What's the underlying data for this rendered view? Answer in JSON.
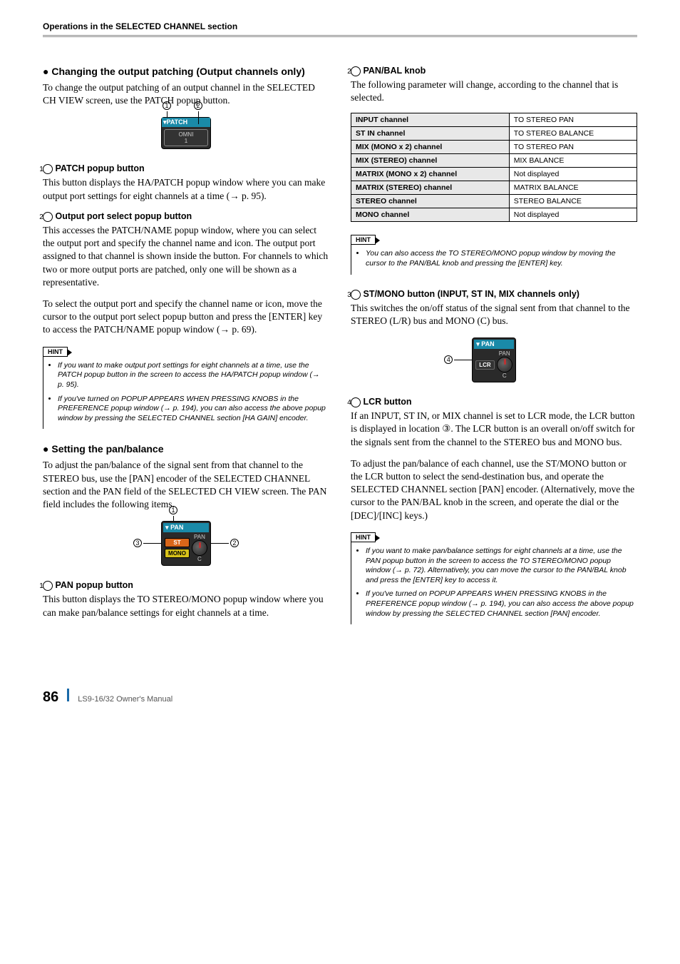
{
  "header": "Operations in the SELECTED CHANNEL section",
  "footer": {
    "page": "86",
    "manual": "LS9-16/32  Owner's Manual"
  },
  "left": {
    "h1": "Changing the output patching (Output channels only)",
    "p1": "To change the output patching of an output channel in the SELECTED CH VIEW screen, use the PATCH popup button.",
    "fig1": {
      "c1": "1",
      "c2": "2",
      "top": "▾PATCH",
      "mid": "OMNI\n1"
    },
    "s1": {
      "num": "1",
      "title": "PATCH popup button",
      "body": "This button displays the HA/PATCH popup window where you can make output port settings for eight channels at a time (→ p. 95)."
    },
    "s2": {
      "num": "2",
      "title": "Output port select popup button",
      "body": "This accesses the PATCH/NAME popup window, where you can select the output port and specify the channel name and icon. The output port assigned to that channel is shown inside the button. For channels to which two or more output ports are patched, only one will be shown as a representative."
    },
    "p2": "To select the output port and specify the channel name or icon, move the cursor to the output port select popup button and press the [ENTER] key to access the PATCH/NAME popup window (→ p. 69).",
    "hint1": [
      "If you want to make output port settings for eight channels at a time, use the PATCH popup button in the screen to access the HA/PATCH popup window (→ p. 95).",
      "If you've turned on POPUP APPEARS WHEN PRESSING KNOBS in the PREFERENCE popup window (→ p. 194), you can also access the above popup window by pressing the SELECTED CHANNEL section [HA GAIN] encoder."
    ],
    "h2": "Setting the pan/balance",
    "p3": "To adjust the pan/balance of the signal sent from that channel to the STEREO bus, use the [PAN] encoder of the SELECTED CHANNEL section and the PAN field of the SELECTED CH VIEW screen. The PAN field includes the following items.",
    "fig2": {
      "c1": "1",
      "c2": "2",
      "c3": "3",
      "top": "▾ PAN",
      "pan": "PAN",
      "st": "ST",
      "mono": "MONO",
      "c": "C"
    },
    "s3": {
      "num": "1",
      "title": "PAN popup button",
      "body": "This button displays the TO STEREO/MONO popup window where you can make pan/balance settings for eight channels at a time."
    }
  },
  "right": {
    "s4": {
      "num": "2",
      "title": "PAN/BAL knob",
      "body": "The following parameter will change, according to the channel that is selected."
    },
    "table": [
      [
        "INPUT channel",
        "TO STEREO PAN"
      ],
      [
        "ST IN channel",
        "TO STEREO BALANCE"
      ],
      [
        "MIX (MONO x 2) channel",
        "TO STEREO PAN"
      ],
      [
        "MIX (STEREO) channel",
        "MIX BALANCE"
      ],
      [
        "MATRIX (MONO x 2) channel",
        "Not displayed"
      ],
      [
        "MATRIX (STEREO) channel",
        "MATRIX BALANCE"
      ],
      [
        "STEREO channel",
        "STEREO BALANCE"
      ],
      [
        "MONO channel",
        "Not displayed"
      ]
    ],
    "hint2": [
      "You can also access the TO STEREO/MONO popup window by moving the cursor to the PAN/BAL knob and pressing the [ENTER] key."
    ],
    "s5": {
      "num": "3",
      "title": "ST/MONO button (INPUT, ST IN, MIX channels only)",
      "body": "This switches the on/off status of the signal sent from that channel to the STEREO (L/R) bus and MONO (C) bus."
    },
    "fig3": {
      "c4": "4",
      "top": "▾ PAN",
      "pan": "PAN",
      "lcr": "LCR",
      "c": "C"
    },
    "s6": {
      "num": "4",
      "title": "LCR button",
      "body": "If an INPUT, ST IN, or MIX channel is set to LCR mode, the LCR button is displayed in location ③. The LCR button is an overall on/off switch for the signals sent from the channel to the STEREO bus and MONO bus."
    },
    "p4": "To adjust the pan/balance of each channel, use the ST/MONO button or the LCR button to select the send-destination bus, and operate the SELECTED CHANNEL section [PAN] encoder. (Alternatively, move the cursor to the PAN/BAL knob in the screen, and operate the dial or the [DEC]/[INC] keys.)",
    "hint3": [
      "If you want to make pan/balance settings for eight channels at a time, use the PAN popup button in the screen to access the TO STEREO/MONO popup window (→ p. 72). Alternatively, you can move the cursor to the PAN/BAL knob and press the [ENTER] key to access it.",
      "If you've turned on POPUP APPEARS WHEN PRESSING KNOBS in the PREFERENCE popup window (→ p. 194), you can also access the above popup window by pressing the SELECTED CHANNEL section [PAN] encoder."
    ]
  },
  "hint_label": "HINT"
}
